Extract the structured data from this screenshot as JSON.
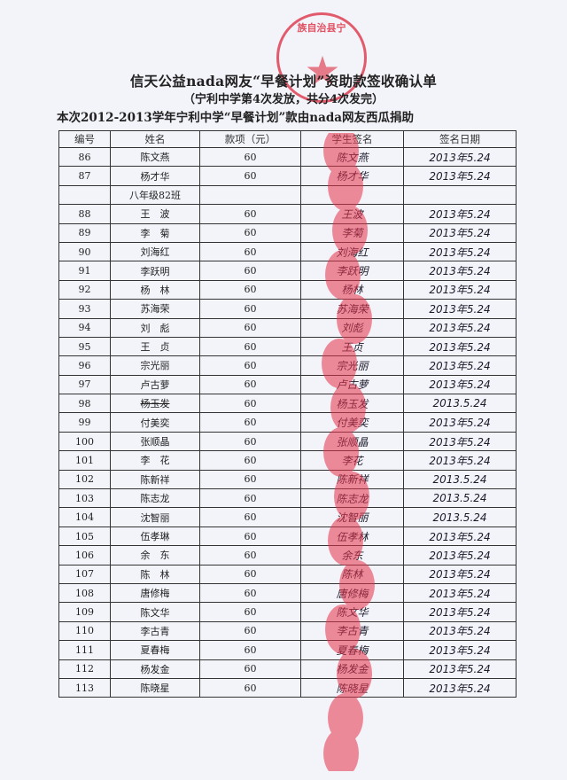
{
  "document": {
    "title": "信天公益nada网友“早餐计划”资助款签收确认单",
    "subtitle": "（宁利中学第4次发放，共分4次发完）",
    "note": "本次2012-2013学年宁利中学“早餐计划”款由nada网友西瓜捐助",
    "seal_text": "族自治县宁",
    "stamp_color": "#dc283c"
  },
  "table": {
    "headers": [
      "编号",
      "姓名",
      "款项（元）",
      "学生签名",
      "签名日期"
    ],
    "rows": [
      {
        "no": "86",
        "name": "陈文燕",
        "amount": "60",
        "signature": "陈文燕",
        "date": "2013年5.24"
      },
      {
        "no": "87",
        "name": "杨才华",
        "amount": "60",
        "signature": "杨才华",
        "date": "2013年5.24"
      },
      {
        "no": "",
        "name": "八年级82班",
        "amount": "",
        "signature": "",
        "date": ""
      },
      {
        "no": "88",
        "name": "王　波",
        "amount": "60",
        "signature": "王波",
        "date": "2013年5.24"
      },
      {
        "no": "89",
        "name": "李　菊",
        "amount": "60",
        "signature": "李菊",
        "date": "2013年5.24"
      },
      {
        "no": "90",
        "name": "刘海红",
        "amount": "60",
        "signature": "刘海红",
        "date": "2013年5.24"
      },
      {
        "no": "91",
        "name": "李跃明",
        "amount": "60",
        "signature": "李跃明",
        "date": "2013年5.24"
      },
      {
        "no": "92",
        "name": "杨　林",
        "amount": "60",
        "signature": "杨林",
        "date": "2013年5.24"
      },
      {
        "no": "93",
        "name": "苏海荣",
        "amount": "60",
        "signature": "苏海荣",
        "date": "2013年5.24"
      },
      {
        "no": "94",
        "name": "刘　彪",
        "amount": "60",
        "signature": "刘彪",
        "date": "2013年5.24"
      },
      {
        "no": "95",
        "name": "王　贞",
        "amount": "60",
        "signature": "王贞",
        "date": "2013年5.24"
      },
      {
        "no": "96",
        "name": "宗光丽",
        "amount": "60",
        "signature": "宗光丽",
        "date": "2013年5.24"
      },
      {
        "no": "97",
        "name": "卢古萝",
        "amount": "60",
        "signature": "卢古萝",
        "date": "2013年5.24"
      },
      {
        "no": "98",
        "name": "杨玉发",
        "amount": "60",
        "signature": "杨玉发",
        "date": "2013.5.24",
        "struck": true
      },
      {
        "no": "99",
        "name": "付美奕",
        "amount": "60",
        "signature": "付美奕",
        "date": "2013年5.24"
      },
      {
        "no": "100",
        "name": "张顺晶",
        "amount": "60",
        "signature": "张顺晶",
        "date": "2013年5.24"
      },
      {
        "no": "101",
        "name": "李　花",
        "amount": "60",
        "signature": "李花",
        "date": "2013年5.24"
      },
      {
        "no": "102",
        "name": "陈新祥",
        "amount": "60",
        "signature": "陈新祥",
        "date": "2013.5.24"
      },
      {
        "no": "103",
        "name": "陈志龙",
        "amount": "60",
        "signature": "陈志龙",
        "date": "2013.5.24"
      },
      {
        "no": "104",
        "name": "沈智丽",
        "amount": "60",
        "signature": "沈智丽",
        "date": "2013.5.24"
      },
      {
        "no": "105",
        "name": "伍孝琳",
        "amount": "60",
        "signature": "伍孝林",
        "date": "2013年5.24"
      },
      {
        "no": "106",
        "name": "余　东",
        "amount": "60",
        "signature": "余东",
        "date": "2013年5.24"
      },
      {
        "no": "107",
        "name": "陈　林",
        "amount": "60",
        "signature": "陈林",
        "date": "2013年5.24"
      },
      {
        "no": "108",
        "name": "唐修梅",
        "amount": "60",
        "signature": "唐修梅",
        "date": "2013年5.24"
      },
      {
        "no": "109",
        "name": "陈文华",
        "amount": "60",
        "signature": "陈文华",
        "date": "2013年5.24"
      },
      {
        "no": "110",
        "name": "李古青",
        "amount": "60",
        "signature": "李古青",
        "date": "2013年5.24"
      },
      {
        "no": "111",
        "name": "夏春梅",
        "amount": "60",
        "signature": "夏春梅",
        "date": "2013年5.24"
      },
      {
        "no": "112",
        "name": "杨发金",
        "amount": "60",
        "signature": "杨发金",
        "date": "2013年5.24"
      },
      {
        "no": "113",
        "name": "陈晓星",
        "amount": "60",
        "signature": "陈晓星",
        "date": "2013年5.24"
      }
    ]
  }
}
